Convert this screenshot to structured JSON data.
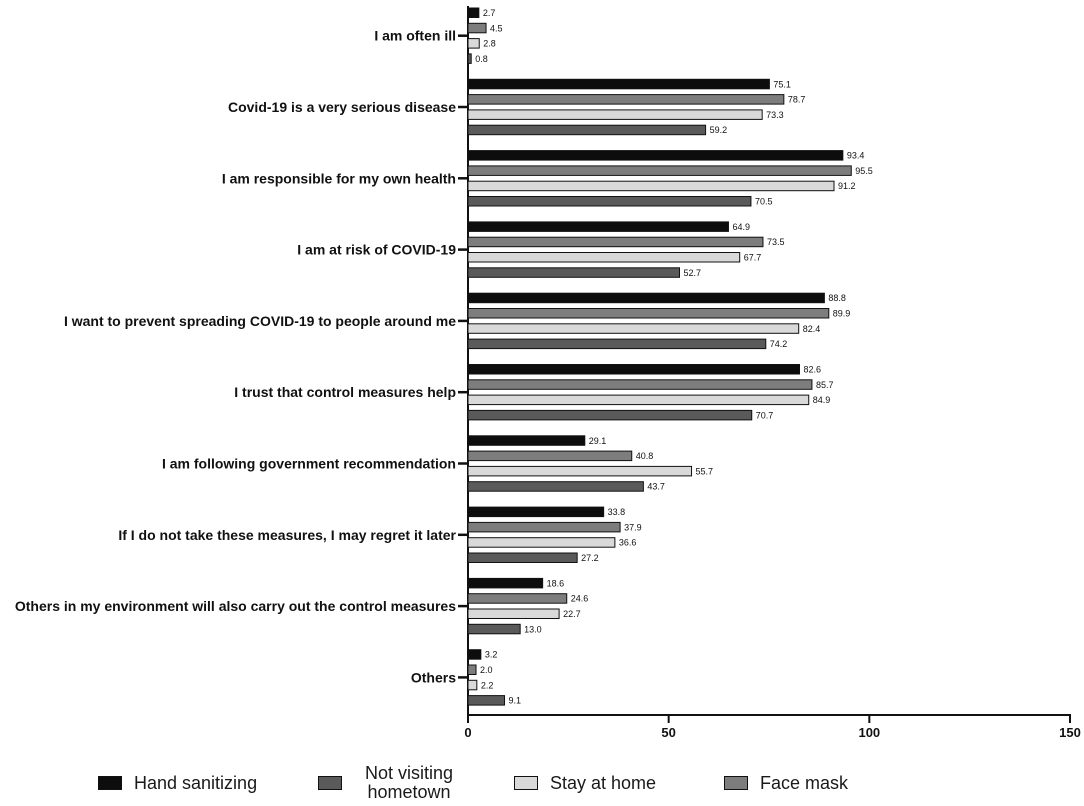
{
  "chart_data": {
    "type": "bar",
    "orientation": "horizontal",
    "title": "",
    "xlabel": "",
    "ylabel": "",
    "xlim": [
      0,
      150
    ],
    "x_ticks": [
      "0",
      "50",
      "100",
      "150"
    ],
    "grid": false,
    "legend_position": "bottom",
    "categories": [
      "I am often ill",
      "Covid-19 is a very serious disease",
      "I am responsible for my own health",
      "I am at risk of COVID-19",
      "I want to prevent spreading COVID-19 to people around me",
      "I trust that control measures help",
      "I am following government recommendation",
      "If I do not take these measures, I may regret it later",
      "Others in my environment will also carry out the control measures",
      "Others"
    ],
    "series": [
      {
        "name": "Hand sanitizing",
        "color": "#0d0d0d",
        "values": [
          2.7,
          75.1,
          93.4,
          64.9,
          88.8,
          82.6,
          29.1,
          33.8,
          18.6,
          3.2
        ],
        "labels": [
          "2.7",
          "75.1",
          "93.4",
          "64.9",
          "88.8",
          "82.6",
          "29.1",
          "33.8",
          "18.6",
          "3.2"
        ]
      },
      {
        "name": "Face mask",
        "color": "#7d7d7d",
        "values": [
          4.5,
          78.7,
          95.5,
          73.5,
          89.9,
          85.7,
          40.8,
          37.9,
          24.6,
          2.0
        ],
        "labels": [
          "4.5",
          "78.7",
          "95.5",
          "73.5",
          "89.9",
          "85.7",
          "40.8",
          "37.9",
          "24.6",
          "2.0"
        ]
      },
      {
        "name": "Stay at home",
        "color": "#d9d9d9",
        "values": [
          2.8,
          73.3,
          91.2,
          67.7,
          82.4,
          84.9,
          55.7,
          36.6,
          22.7,
          2.2
        ],
        "labels": [
          "2.8",
          "73.3",
          "91.2",
          "67.7",
          "82.4",
          "84.9",
          "55.7",
          "36.6",
          "22.7",
          "2.2"
        ]
      },
      {
        "name": "Not visiting hometown",
        "color": "#5a5a5a",
        "values": [
          0.8,
          59.2,
          70.5,
          52.7,
          74.2,
          70.7,
          43.7,
          27.2,
          13.0,
          9.1
        ],
        "labels": [
          "0.8",
          "59.2",
          "70.5",
          "52.7",
          "74.2",
          "70.7",
          "43.7",
          "27.2",
          "13.0",
          "9.1"
        ]
      }
    ]
  },
  "legend": {
    "items": [
      {
        "label_line1": "Hand sanitizing",
        "label_line2": "",
        "color": "#0d0d0d"
      },
      {
        "label_line1": "Not visiting",
        "label_line2": "hometown",
        "color": "#5a5a5a"
      },
      {
        "label_line1": "Stay at home",
        "label_line2": "",
        "color": "#d9d9d9"
      },
      {
        "label_line1": "Face mask",
        "label_line2": "",
        "color": "#7d7d7d"
      }
    ]
  }
}
